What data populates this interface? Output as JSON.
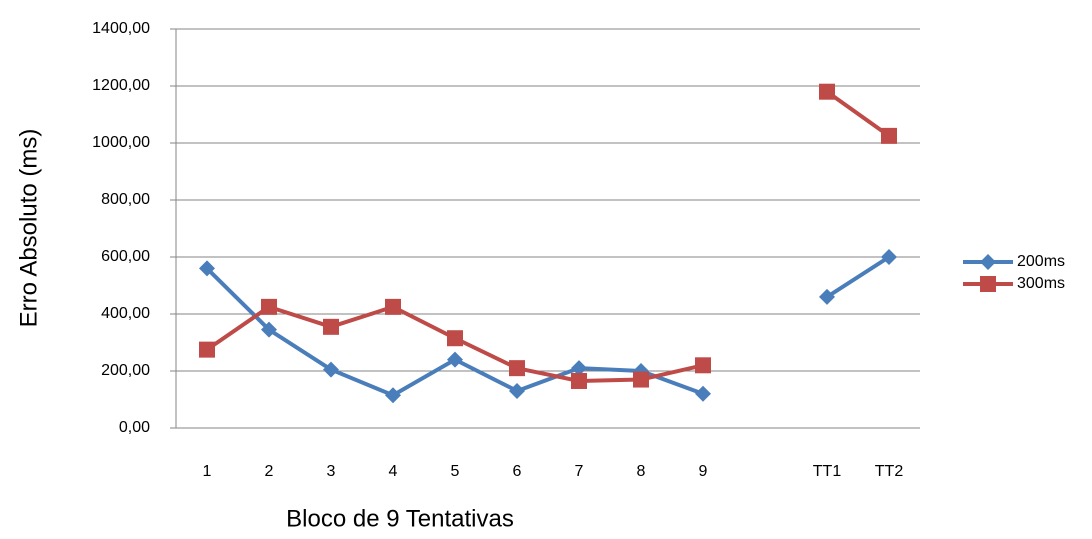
{
  "chart_data": {
    "type": "line",
    "x_label": "Bloco de 9 Tentativas",
    "y_label": "Erro Absoluto (ms)",
    "categories": [
      "1",
      "2",
      "3",
      "4",
      "5",
      "6",
      "7",
      "8",
      "9",
      null,
      "TT1",
      "TT2"
    ],
    "series": [
      {
        "name": "200ms",
        "color": "#4a7ebb",
        "marker": "diamond",
        "values": [
          560,
          345,
          205,
          115,
          240,
          130,
          210,
          200,
          120,
          null,
          460,
          600
        ]
      },
      {
        "name": "300ms",
        "color": "#be4b48",
        "marker": "square",
        "values": [
          275,
          425,
          355,
          425,
          315,
          210,
          165,
          170,
          220,
          null,
          1180,
          1025
        ]
      }
    ],
    "ylim": [
      0,
      1400
    ],
    "yticks": [
      {
        "value": 0,
        "label": "0,00"
      },
      {
        "value": 200,
        "label": "200,00"
      },
      {
        "value": 400,
        "label": "400,00"
      },
      {
        "value": 600,
        "label": "600,00"
      },
      {
        "value": 800,
        "label": "800,00"
      },
      {
        "value": 1000,
        "label": "1000,00"
      },
      {
        "value": 1200,
        "label": "1200,00"
      },
      {
        "value": 1400,
        "label": "1400,00"
      }
    ],
    "grid": true,
    "legend": "right"
  }
}
